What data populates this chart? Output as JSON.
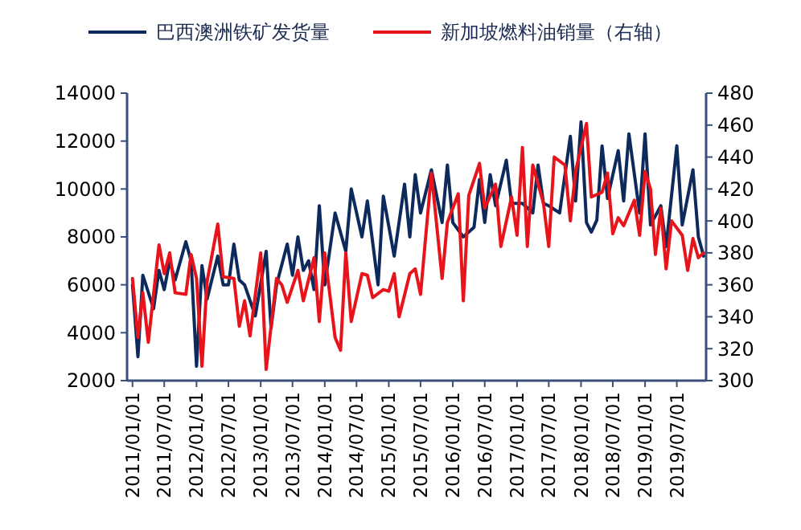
{
  "chart_data": {
    "type": "line",
    "legend": "top",
    "grid": false,
    "xlim": [
      "2010-12-01",
      "2019-12-15"
    ],
    "xticks": [
      {
        "value": "2011-01-01",
        "label": "2011/01/01"
      },
      {
        "value": "2011-07-01",
        "label": "2011/07/01"
      },
      {
        "value": "2012-01-01",
        "label": "2012/01/01"
      },
      {
        "value": "2012-07-01",
        "label": "2012/07/01"
      },
      {
        "value": "2013-01-01",
        "label": "2013/01/01"
      },
      {
        "value": "2013-07-01",
        "label": "2013/07/01"
      },
      {
        "value": "2014-01-01",
        "label": "2014/01/01"
      },
      {
        "value": "2014-07-01",
        "label": "2014/07/01"
      },
      {
        "value": "2015-01-01",
        "label": "2015/01/01"
      },
      {
        "value": "2015-07-01",
        "label": "2015/07/01"
      },
      {
        "value": "2016-01-01",
        "label": "2016/01/01"
      },
      {
        "value": "2016-07-01",
        "label": "2016/07/01"
      },
      {
        "value": "2017-01-01",
        "label": "2017/01/01"
      },
      {
        "value": "2017-07-01",
        "label": "2017/07/01"
      },
      {
        "value": "2018-01-01",
        "label": "2018/01/01"
      },
      {
        "value": "2018-07-01",
        "label": "2018/07/01"
      },
      {
        "value": "2019-01-01",
        "label": "2019/01/01"
      },
      {
        "value": "2019-07-01",
        "label": "2019/07/01"
      }
    ],
    "ylim": [
      2000,
      14000
    ],
    "yticks": [
      2000,
      4000,
      6000,
      8000,
      10000,
      12000,
      14000
    ],
    "y2lim": [
      300,
      480
    ],
    "y2ticks": [
      300,
      320,
      340,
      360,
      380,
      400,
      420,
      440,
      460,
      480
    ],
    "series": [
      {
        "name": "巴西澳洲铁矿发货量",
        "color": "#0d2a5c",
        "x": [
          "2011-01",
          "2011-02",
          "2011-03",
          "2011-05",
          "2011-06",
          "2011-07",
          "2011-08",
          "2011-09",
          "2011-11",
          "2011-12",
          "2012-01",
          "2012-02",
          "2012-03",
          "2012-05",
          "2012-06",
          "2012-07",
          "2012-08",
          "2012-09",
          "2012-10",
          "2012-12",
          "2013-02",
          "2013-03",
          "2013-04",
          "2013-06",
          "2013-07",
          "2013-08",
          "2013-09",
          "2013-10",
          "2013-11",
          "2013-12",
          "2014-01",
          "2014-03",
          "2014-05",
          "2014-06",
          "2014-08",
          "2014-09",
          "2014-11",
          "2014-12",
          "2015-02",
          "2015-04",
          "2015-05",
          "2015-06",
          "2015-07",
          "2015-09",
          "2015-11",
          "2015-12",
          "2016-01",
          "2016-03",
          "2016-05",
          "2016-06",
          "2016-07",
          "2016-08",
          "2016-09",
          "2016-11",
          "2016-12",
          "2017-02",
          "2017-04",
          "2017-05",
          "2017-06",
          "2017-07",
          "2017-09",
          "2017-11",
          "2017-12",
          "2018-01",
          "2018-02",
          "2018-03",
          "2018-04",
          "2018-05",
          "2018-06",
          "2018-08",
          "2018-09",
          "2018-10",
          "2018-12",
          "2019-01",
          "2019-02",
          "2019-04",
          "2019-05",
          "2019-07",
          "2019-08",
          "2019-10",
          "2019-11",
          "2019-12"
        ],
        "values": [
          6000,
          3000,
          6400,
          5000,
          6600,
          5800,
          7000,
          6200,
          7800,
          7000,
          2600,
          6800,
          5400,
          7200,
          6000,
          6000,
          7700,
          6200,
          6000,
          4700,
          7400,
          4200,
          6000,
          7700,
          6400,
          8000,
          6600,
          7000,
          5800,
          9300,
          6000,
          9000,
          7400,
          10000,
          8000,
          9500,
          6000,
          9700,
          7200,
          10200,
          8000,
          10600,
          9000,
          10800,
          8600,
          11000,
          8600,
          8000,
          8400,
          10400,
          8600,
          10600,
          9300,
          11200,
          9400,
          9400,
          9000,
          11000,
          9400,
          9300,
          9000,
          12200,
          9500,
          12800,
          8600,
          8200,
          8700,
          11800,
          9600,
          11600,
          9500,
          12300,
          9000,
          12300,
          8500,
          9300,
          7600,
          11800,
          8500,
          10800,
          8000,
          7200
        ]
      },
      {
        "name": "新加坡燃料油销量（右轴）",
        "color": "#e8141b",
        "axis": "y2",
        "x": [
          "2011-01",
          "2011-02",
          "2011-03",
          "2011-04",
          "2011-06",
          "2011-07",
          "2011-08",
          "2011-09",
          "2011-11",
          "2011-12",
          "2012-01",
          "2012-02",
          "2012-03",
          "2012-05",
          "2012-06",
          "2012-08",
          "2012-09",
          "2012-10",
          "2012-11",
          "2013-01",
          "2013-02",
          "2013-04",
          "2013-05",
          "2013-06",
          "2013-08",
          "2013-09",
          "2013-11",
          "2013-12",
          "2014-01",
          "2014-03",
          "2014-04",
          "2014-05",
          "2014-06",
          "2014-08",
          "2014-09",
          "2014-10",
          "2014-12",
          "2015-01",
          "2015-02",
          "2015-03",
          "2015-05",
          "2015-06",
          "2015-07",
          "2015-09",
          "2015-11",
          "2015-12",
          "2016-02",
          "2016-03",
          "2016-04",
          "2016-06",
          "2016-07",
          "2016-09",
          "2016-10",
          "2016-12",
          "2017-01",
          "2017-02",
          "2017-03",
          "2017-04",
          "2017-06",
          "2017-07",
          "2017-08",
          "2017-10",
          "2017-11",
          "2017-12",
          "2018-02",
          "2018-03",
          "2018-05",
          "2018-06",
          "2018-07",
          "2018-08",
          "2018-09",
          "2018-11",
          "2018-12",
          "2019-01",
          "2019-02",
          "2019-03",
          "2019-04",
          "2019-05",
          "2019-06",
          "2019-08",
          "2019-09",
          "2019-10",
          "2019-11",
          "2019-12"
        ],
        "values": [
          364,
          327,
          355,
          324,
          385,
          367,
          380,
          355,
          354,
          379,
          364,
          309,
          362,
          398,
          365,
          364,
          334,
          350,
          328,
          380,
          307,
          364,
          360,
          349,
          369,
          350,
          377,
          337,
          380,
          327,
          319,
          380,
          337,
          367,
          366,
          352,
          357,
          356,
          367,
          340,
          367,
          370,
          354,
          430,
          364,
          399,
          417,
          350,
          416,
          436,
          408,
          423,
          384,
          415,
          391,
          446,
          384,
          435,
          411,
          384,
          440,
          435,
          400,
          431,
          461,
          415,
          418,
          430,
          392,
          402,
          397,
          413,
          391,
          431,
          420,
          379,
          408,
          370,
          400,
          391,
          369,
          389,
          377,
          380
        ]
      }
    ]
  }
}
